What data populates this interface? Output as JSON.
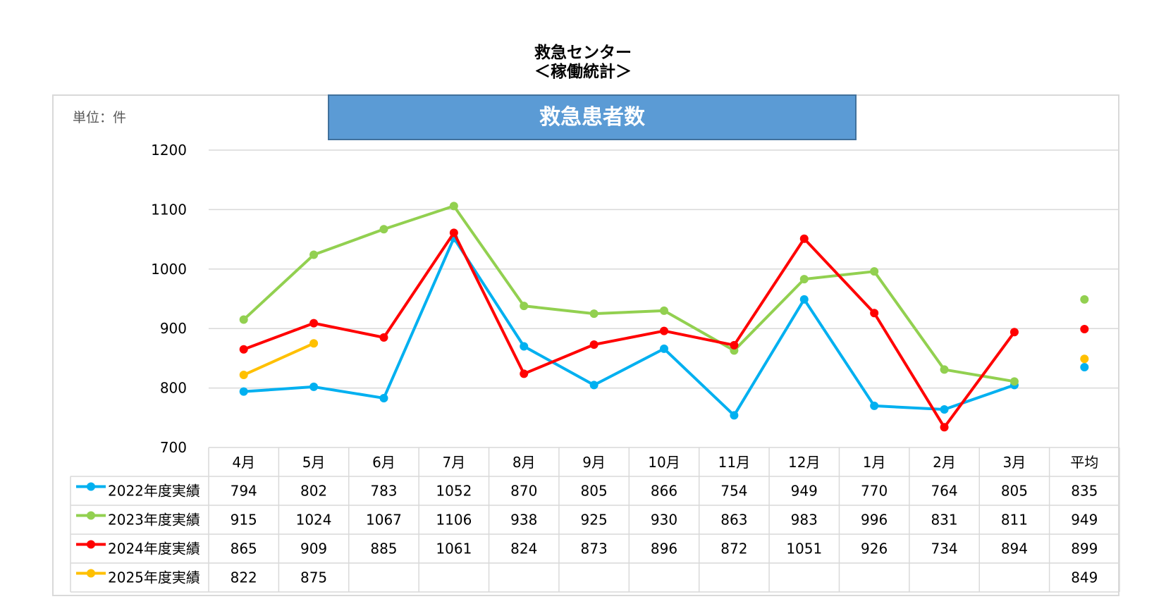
{
  "title_line1": "救急センター",
  "title_line2": "＜稼働統計＞",
  "banner": "救急患者数",
  "unit_label": "単位：件",
  "chart_data": {
    "type": "line",
    "title": "救急患者数",
    "categories": [
      "4月",
      "5月",
      "6月",
      "7月",
      "8月",
      "9月",
      "10月",
      "11月",
      "12月",
      "1月",
      "2月",
      "3月"
    ],
    "average_label": "平均",
    "ylim": [
      700,
      1200
    ],
    "yticks": [
      700,
      800,
      900,
      1000,
      1100,
      1200
    ],
    "grid": true,
    "legend": "data-table",
    "series": [
      {
        "name": "2022年度実績",
        "color": "#00b0f0",
        "values": [
          794,
          802,
          783,
          1052,
          870,
          805,
          866,
          754,
          949,
          770,
          764,
          805
        ],
        "average": 835
      },
      {
        "name": "2023年度実績",
        "color": "#92d050",
        "values": [
          915,
          1024,
          1067,
          1106,
          938,
          925,
          930,
          863,
          983,
          996,
          831,
          811
        ],
        "average": 949
      },
      {
        "name": "2024年度実績",
        "color": "#ff0000",
        "values": [
          865,
          909,
          885,
          1061,
          824,
          873,
          896,
          872,
          1051,
          926,
          734,
          894
        ],
        "average": 899
      },
      {
        "name": "2025年度実績",
        "color": "#ffc000",
        "values": [
          822,
          875,
          null,
          null,
          null,
          null,
          null,
          null,
          null,
          null,
          null,
          null
        ],
        "average": 849
      }
    ]
  }
}
